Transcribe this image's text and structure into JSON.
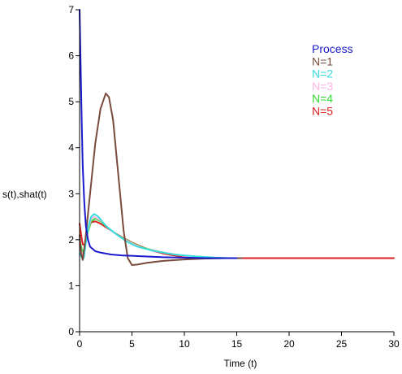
{
  "chart_data": {
    "type": "line",
    "title": "",
    "xlabel": "Time (t)",
    "ylabel": "s(t),shat(t)",
    "xlim": [
      0,
      30
    ],
    "ylim": [
      0,
      7
    ],
    "xticks": [
      0,
      5,
      10,
      15,
      20,
      25,
      30
    ],
    "yticks": [
      0,
      1,
      2,
      3,
      4,
      5,
      6,
      7
    ],
    "grid": false,
    "legend": {
      "placement": "top-right",
      "entries": [
        {
          "label": "Process",
          "color": "#1a1acc"
        },
        {
          "label": "N=1",
          "color": "#7a4a3c"
        },
        {
          "label": "N=2",
          "color": "#33dddd"
        },
        {
          "label": "N=3",
          "color": "#ffb3e6"
        },
        {
          "label": "N=4",
          "color": "#33dd33"
        },
        {
          "label": "N=5",
          "color": "#dd1f1f"
        }
      ]
    },
    "series": [
      {
        "name": "N=5",
        "color": "#dd1f1f",
        "points": [
          [
            0,
            2.35
          ],
          [
            0.15,
            2.1
          ],
          [
            0.3,
            1.9
          ],
          [
            0.5,
            1.88
          ],
          [
            0.8,
            2.2
          ],
          [
            1.1,
            2.38
          ],
          [
            1.5,
            2.4
          ],
          [
            2,
            2.35
          ],
          [
            3,
            2.2
          ],
          [
            4,
            2.06
          ],
          [
            5,
            1.94
          ],
          [
            6,
            1.84
          ],
          [
            7,
            1.76
          ],
          [
            8,
            1.7
          ],
          [
            9,
            1.66
          ],
          [
            10,
            1.63
          ],
          [
            12,
            1.61
          ],
          [
            14,
            1.6
          ],
          [
            16,
            1.6
          ],
          [
            20,
            1.6
          ],
          [
            25,
            1.6
          ],
          [
            30,
            1.6
          ]
        ]
      },
      {
        "name": "N=4",
        "color": "#33dd33",
        "points": [
          [
            0,
            2.0
          ],
          [
            0.2,
            1.8
          ],
          [
            0.4,
            1.7
          ],
          [
            0.7,
            2.1
          ],
          [
            1.1,
            2.4
          ],
          [
            1.5,
            2.46
          ],
          [
            2,
            2.4
          ],
          [
            3,
            2.2
          ],
          [
            4,
            2.05
          ],
          [
            5,
            1.93
          ],
          [
            6,
            1.83
          ],
          [
            8,
            1.72
          ],
          [
            10,
            1.65
          ],
          [
            12,
            1.62
          ],
          [
            13.5,
            1.6
          ]
        ]
      },
      {
        "name": "N=3",
        "color": "#ffb3e6",
        "points": [
          [
            0,
            1.9
          ],
          [
            0.2,
            1.72
          ],
          [
            0.4,
            1.66
          ],
          [
            0.7,
            2.15
          ],
          [
            1.1,
            2.45
          ],
          [
            1.4,
            2.5
          ],
          [
            2,
            2.42
          ],
          [
            3,
            2.2
          ],
          [
            4,
            2.04
          ],
          [
            5,
            1.92
          ],
          [
            6,
            1.82
          ],
          [
            8,
            1.72
          ],
          [
            10,
            1.65
          ],
          [
            12,
            1.62
          ],
          [
            13,
            1.6
          ]
        ]
      },
      {
        "name": "N=2",
        "color": "#33dddd",
        "points": [
          [
            0,
            1.7
          ],
          [
            0.2,
            1.62
          ],
          [
            0.4,
            1.6
          ],
          [
            0.8,
            2.25
          ],
          [
            1.1,
            2.5
          ],
          [
            1.4,
            2.56
          ],
          [
            1.8,
            2.5
          ],
          [
            2.5,
            2.3
          ],
          [
            3.5,
            2.12
          ],
          [
            4.5,
            1.96
          ],
          [
            5.5,
            1.85
          ],
          [
            7,
            1.76
          ],
          [
            9,
            1.68
          ],
          [
            11,
            1.64
          ],
          [
            13,
            1.61
          ],
          [
            14.5,
            1.6
          ]
        ]
      },
      {
        "name": "N=1",
        "color": "#7a4a3c",
        "points": [
          [
            0,
            2.1
          ],
          [
            0.15,
            1.7
          ],
          [
            0.3,
            1.56
          ],
          [
            0.55,
            2.0
          ],
          [
            1,
            3.0
          ],
          [
            1.5,
            4.1
          ],
          [
            2,
            4.85
          ],
          [
            2.5,
            5.18
          ],
          [
            2.8,
            5.1
          ],
          [
            3.2,
            4.6
          ],
          [
            3.7,
            3.4
          ],
          [
            4.2,
            2.2
          ],
          [
            4.6,
            1.6
          ],
          [
            5,
            1.45
          ],
          [
            5.5,
            1.46
          ],
          [
            6.5,
            1.5
          ],
          [
            8,
            1.54
          ],
          [
            10,
            1.57
          ],
          [
            12,
            1.59
          ],
          [
            14,
            1.6
          ],
          [
            15.5,
            1.6
          ]
        ]
      },
      {
        "name": "Process",
        "color": "#1a1acc",
        "points": [
          [
            0,
            7.0
          ],
          [
            0.1,
            5.8
          ],
          [
            0.2,
            4.6
          ],
          [
            0.3,
            3.6
          ],
          [
            0.45,
            2.8
          ],
          [
            0.6,
            2.3
          ],
          [
            0.8,
            2.0
          ],
          [
            1,
            1.85
          ],
          [
            1.5,
            1.75
          ],
          [
            2,
            1.72
          ],
          [
            3,
            1.68
          ],
          [
            4,
            1.66
          ],
          [
            5,
            1.65
          ],
          [
            6,
            1.64
          ],
          [
            8,
            1.62
          ],
          [
            10,
            1.61
          ],
          [
            12,
            1.6
          ],
          [
            15,
            1.6
          ]
        ]
      }
    ]
  }
}
